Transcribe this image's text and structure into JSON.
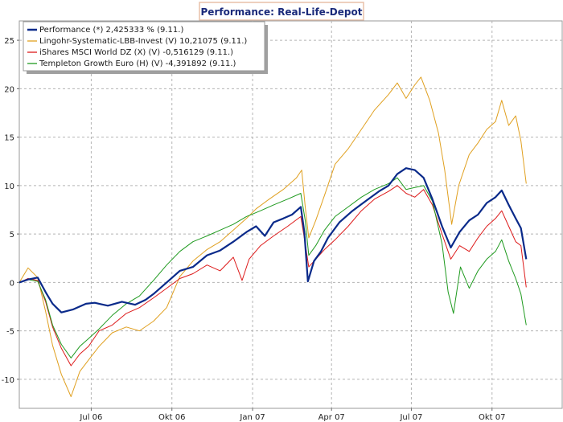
{
  "chart_data": {
    "type": "line",
    "title": "Performance: Real-Life-Depot",
    "xlabel": "",
    "ylabel": "",
    "ylim": [
      -13,
      27
    ],
    "y_ticks": [
      -10,
      -5,
      0,
      5,
      10,
      15,
      20,
      25
    ],
    "grid": true,
    "legend_position": "top-left",
    "x_range": [
      "2006-04-10",
      "2007-12-20"
    ],
    "x_ticks": [
      {
        "date": "2006-07-01",
        "label": "Jul 06"
      },
      {
        "date": "2006-10-01",
        "label": "Okt 06"
      },
      {
        "date": "2007-01-01",
        "label": "Jan 07"
      },
      {
        "date": "2007-04-01",
        "label": "Apr 07"
      },
      {
        "date": "2007-07-01",
        "label": "Jul 07"
      },
      {
        "date": "2007-10-01",
        "label": "Okt 07"
      }
    ],
    "x_gridlines": [
      "2006-07-01",
      "2006-10-01",
      "2007-01-01",
      "2007-04-01",
      "2007-07-01",
      "2007-10-01",
      "2008-01-01"
    ],
    "series": [
      {
        "name": "Performance (*) 2,425333 % (9.11.)",
        "color": "#0a2a8a",
        "bold": true,
        "points": [
          [
            "2006-04-10",
            0.0
          ],
          [
            "2006-04-20",
            0.3
          ],
          [
            "2006-05-01",
            0.5
          ],
          [
            "2006-05-10",
            -1.0
          ],
          [
            "2006-05-18",
            -2.2
          ],
          [
            "2006-05-28",
            -3.1
          ],
          [
            "2006-06-10",
            -2.8
          ],
          [
            "2006-06-25",
            -2.2
          ],
          [
            "2006-07-05",
            -2.1
          ],
          [
            "2006-07-20",
            -2.4
          ],
          [
            "2006-08-05",
            -2.0
          ],
          [
            "2006-08-20",
            -2.3
          ],
          [
            "2006-09-01",
            -1.8
          ],
          [
            "2006-09-10",
            -1.2
          ],
          [
            "2006-09-25",
            0.0
          ],
          [
            "2006-10-10",
            1.2
          ],
          [
            "2006-10-25",
            1.6
          ],
          [
            "2006-11-10",
            2.8
          ],
          [
            "2006-11-25",
            3.3
          ],
          [
            "2006-12-10",
            4.2
          ],
          [
            "2006-12-25",
            5.2
          ],
          [
            "2007-01-05",
            5.8
          ],
          [
            "2007-01-15",
            4.8
          ],
          [
            "2007-01-25",
            6.2
          ],
          [
            "2007-02-05",
            6.6
          ],
          [
            "2007-02-15",
            7.0
          ],
          [
            "2007-02-25",
            7.8
          ],
          [
            "2007-03-01",
            5.2
          ],
          [
            "2007-03-05",
            0.1
          ],
          [
            "2007-03-12",
            2.2
          ],
          [
            "2007-03-20",
            3.2
          ],
          [
            "2007-03-28",
            4.6
          ],
          [
            "2007-04-10",
            6.2
          ],
          [
            "2007-04-25",
            7.4
          ],
          [
            "2007-05-10",
            8.4
          ],
          [
            "2007-05-25",
            9.4
          ],
          [
            "2007-06-05",
            10.0
          ],
          [
            "2007-06-15",
            11.2
          ],
          [
            "2007-06-25",
            11.8
          ],
          [
            "2007-07-05",
            11.6
          ],
          [
            "2007-07-15",
            10.8
          ],
          [
            "2007-07-25",
            8.6
          ],
          [
            "2007-08-05",
            5.8
          ],
          [
            "2007-08-15",
            3.6
          ],
          [
            "2007-08-25",
            5.2
          ],
          [
            "2007-09-05",
            6.4
          ],
          [
            "2007-09-15",
            7.0
          ],
          [
            "2007-09-25",
            8.2
          ],
          [
            "2007-10-05",
            8.8
          ],
          [
            "2007-10-12",
            9.5
          ],
          [
            "2007-10-20",
            8.0
          ],
          [
            "2007-10-28",
            6.6
          ],
          [
            "2007-11-03",
            5.6
          ],
          [
            "2007-11-09",
            2.4
          ]
        ]
      },
      {
        "name": "Lingohr-Systematic-LBB-Invest (V) 10,21075 (9.11.)",
        "color": "#e0a020",
        "bold": false,
        "points": [
          [
            "2006-04-10",
            0.0
          ],
          [
            "2006-04-20",
            1.5
          ],
          [
            "2006-05-01",
            0.5
          ],
          [
            "2006-05-10",
            -3.0
          ],
          [
            "2006-05-18",
            -6.5
          ],
          [
            "2006-05-28",
            -9.5
          ],
          [
            "2006-06-08",
            -11.8
          ],
          [
            "2006-06-18",
            -9.2
          ],
          [
            "2006-06-28",
            -8.0
          ],
          [
            "2006-07-10",
            -6.6
          ],
          [
            "2006-07-25",
            -5.2
          ],
          [
            "2006-08-10",
            -4.6
          ],
          [
            "2006-08-25",
            -5.0
          ],
          [
            "2006-09-10",
            -4.0
          ],
          [
            "2006-09-25",
            -2.6
          ],
          [
            "2006-10-10",
            0.6
          ],
          [
            "2006-10-25",
            2.2
          ],
          [
            "2006-11-10",
            3.4
          ],
          [
            "2006-11-25",
            4.2
          ],
          [
            "2006-12-10",
            5.4
          ],
          [
            "2006-12-25",
            6.6
          ],
          [
            "2007-01-05",
            7.6
          ],
          [
            "2007-01-20",
            8.6
          ],
          [
            "2007-02-05",
            9.6
          ],
          [
            "2007-02-20",
            10.8
          ],
          [
            "2007-02-26",
            11.6
          ],
          [
            "2007-03-02",
            7.8
          ],
          [
            "2007-03-06",
            4.6
          ],
          [
            "2007-03-14",
            6.4
          ],
          [
            "2007-03-24",
            9.0
          ],
          [
            "2007-04-05",
            12.2
          ],
          [
            "2007-04-20",
            13.8
          ],
          [
            "2007-05-05",
            15.8
          ],
          [
            "2007-05-20",
            17.8
          ],
          [
            "2007-06-05",
            19.4
          ],
          [
            "2007-06-15",
            20.6
          ],
          [
            "2007-06-25",
            19.0
          ],
          [
            "2007-07-05",
            20.4
          ],
          [
            "2007-07-12",
            21.2
          ],
          [
            "2007-07-22",
            18.8
          ],
          [
            "2007-08-01",
            15.4
          ],
          [
            "2007-08-08",
            11.6
          ],
          [
            "2007-08-16",
            6.0
          ],
          [
            "2007-08-24",
            10.0
          ],
          [
            "2007-09-05",
            13.2
          ],
          [
            "2007-09-15",
            14.4
          ],
          [
            "2007-09-25",
            15.8
          ],
          [
            "2007-10-05",
            16.6
          ],
          [
            "2007-10-12",
            18.8
          ],
          [
            "2007-10-20",
            16.2
          ],
          [
            "2007-10-28",
            17.2
          ],
          [
            "2007-11-03",
            14.6
          ],
          [
            "2007-11-09",
            10.2
          ]
        ]
      },
      {
        "name": "iShares MSCI World DZ (X) (V) -0,516129 (9.11.)",
        "color": "#dd1a1a",
        "bold": false,
        "points": [
          [
            "2006-04-10",
            0.0
          ],
          [
            "2006-04-20",
            0.4
          ],
          [
            "2006-05-01",
            0.2
          ],
          [
            "2006-05-10",
            -2.0
          ],
          [
            "2006-05-18",
            -4.6
          ],
          [
            "2006-05-28",
            -6.8
          ],
          [
            "2006-06-08",
            -8.6
          ],
          [
            "2006-06-18",
            -7.4
          ],
          [
            "2006-06-28",
            -6.6
          ],
          [
            "2006-07-10",
            -5.0
          ],
          [
            "2006-07-25",
            -4.4
          ],
          [
            "2006-08-10",
            -3.2
          ],
          [
            "2006-08-25",
            -2.6
          ],
          [
            "2006-09-10",
            -1.6
          ],
          [
            "2006-09-25",
            -0.6
          ],
          [
            "2006-10-10",
            0.4
          ],
          [
            "2006-10-25",
            0.9
          ],
          [
            "2006-11-10",
            1.8
          ],
          [
            "2006-11-25",
            1.2
          ],
          [
            "2006-12-10",
            2.6
          ],
          [
            "2006-12-20",
            0.2
          ],
          [
            "2006-12-28",
            2.4
          ],
          [
            "2007-01-10",
            3.8
          ],
          [
            "2007-01-25",
            4.8
          ],
          [
            "2007-02-10",
            5.8
          ],
          [
            "2007-02-25",
            6.8
          ],
          [
            "2007-03-02",
            4.0
          ],
          [
            "2007-03-06",
            1.6
          ],
          [
            "2007-03-14",
            2.4
          ],
          [
            "2007-03-24",
            3.4
          ],
          [
            "2007-04-05",
            4.4
          ],
          [
            "2007-04-20",
            5.8
          ],
          [
            "2007-05-05",
            7.4
          ],
          [
            "2007-05-20",
            8.6
          ],
          [
            "2007-06-05",
            9.4
          ],
          [
            "2007-06-15",
            10.0
          ],
          [
            "2007-06-25",
            9.2
          ],
          [
            "2007-07-05",
            8.8
          ],
          [
            "2007-07-15",
            9.6
          ],
          [
            "2007-07-25",
            8.0
          ],
          [
            "2007-08-05",
            5.0
          ],
          [
            "2007-08-15",
            2.4
          ],
          [
            "2007-08-25",
            3.8
          ],
          [
            "2007-09-05",
            3.2
          ],
          [
            "2007-09-15",
            4.6
          ],
          [
            "2007-09-25",
            5.8
          ],
          [
            "2007-10-05",
            6.6
          ],
          [
            "2007-10-12",
            7.4
          ],
          [
            "2007-10-20",
            5.8
          ],
          [
            "2007-10-28",
            4.2
          ],
          [
            "2007-11-03",
            3.8
          ],
          [
            "2007-11-09",
            -0.5
          ]
        ]
      },
      {
        "name": "Templeton Growth Euro (H) (V) -4,391892 (9.11.)",
        "color": "#1f9a1f",
        "bold": false,
        "points": [
          [
            "2006-04-10",
            0.0
          ],
          [
            "2006-04-20",
            0.3
          ],
          [
            "2006-05-01",
            0.1
          ],
          [
            "2006-05-10",
            -1.8
          ],
          [
            "2006-05-18",
            -4.4
          ],
          [
            "2006-05-28",
            -6.4
          ],
          [
            "2006-06-08",
            -7.8
          ],
          [
            "2006-06-18",
            -6.6
          ],
          [
            "2006-06-28",
            -5.8
          ],
          [
            "2006-07-10",
            -4.8
          ],
          [
            "2006-07-25",
            -3.4
          ],
          [
            "2006-08-10",
            -2.2
          ],
          [
            "2006-08-25",
            -1.4
          ],
          [
            "2006-09-10",
            0.2
          ],
          [
            "2006-09-25",
            1.8
          ],
          [
            "2006-10-10",
            3.2
          ],
          [
            "2006-10-25",
            4.2
          ],
          [
            "2006-11-10",
            4.8
          ],
          [
            "2006-11-25",
            5.4
          ],
          [
            "2006-12-10",
            6.0
          ],
          [
            "2006-12-25",
            6.8
          ],
          [
            "2007-01-10",
            7.4
          ],
          [
            "2007-01-25",
            8.0
          ],
          [
            "2007-02-10",
            8.6
          ],
          [
            "2007-02-25",
            9.2
          ],
          [
            "2007-03-02",
            6.4
          ],
          [
            "2007-03-06",
            2.8
          ],
          [
            "2007-03-14",
            3.8
          ],
          [
            "2007-03-24",
            5.4
          ],
          [
            "2007-04-05",
            6.8
          ],
          [
            "2007-04-20",
            7.8
          ],
          [
            "2007-05-05",
            8.8
          ],
          [
            "2007-05-20",
            9.6
          ],
          [
            "2007-06-05",
            10.2
          ],
          [
            "2007-06-15",
            10.8
          ],
          [
            "2007-06-25",
            9.6
          ],
          [
            "2007-07-05",
            9.8
          ],
          [
            "2007-07-15",
            10.0
          ],
          [
            "2007-07-25",
            8.4
          ],
          [
            "2007-08-05",
            4.0
          ],
          [
            "2007-08-12",
            -1.0
          ],
          [
            "2007-08-18",
            -3.2
          ],
          [
            "2007-08-26",
            1.6
          ],
          [
            "2007-09-05",
            -0.6
          ],
          [
            "2007-09-15",
            1.2
          ],
          [
            "2007-09-25",
            2.4
          ],
          [
            "2007-10-05",
            3.2
          ],
          [
            "2007-10-12",
            4.4
          ],
          [
            "2007-10-20",
            2.2
          ],
          [
            "2007-10-28",
            0.4
          ],
          [
            "2007-11-03",
            -1.2
          ],
          [
            "2007-11-09",
            -4.4
          ]
        ]
      }
    ]
  }
}
